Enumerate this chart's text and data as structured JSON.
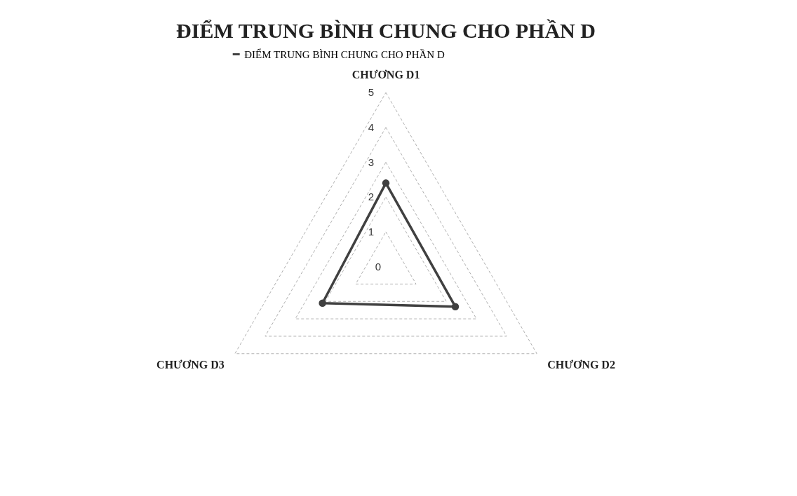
{
  "chart_data": {
    "type": "radar",
    "title": "ĐIỂM TRUNG BÌNH CHUNG CHO PHẦN D",
    "categories": [
      "CHƯƠNG D1",
      "CHƯƠNG D2",
      "CHƯƠNG D3"
    ],
    "series": [
      {
        "name": "ĐIỂM TRUNG BÌNH CHUNG CHO PHẦN D",
        "color": "#404040",
        "values": [
          2.4,
          2.3,
          2.1
        ]
      }
    ],
    "ylim": [
      0,
      5
    ],
    "yticks": [
      0,
      1,
      2,
      3,
      4,
      5
    ],
    "grid": true,
    "legend": "top",
    "marker": "circle",
    "line_style": "solid"
  }
}
